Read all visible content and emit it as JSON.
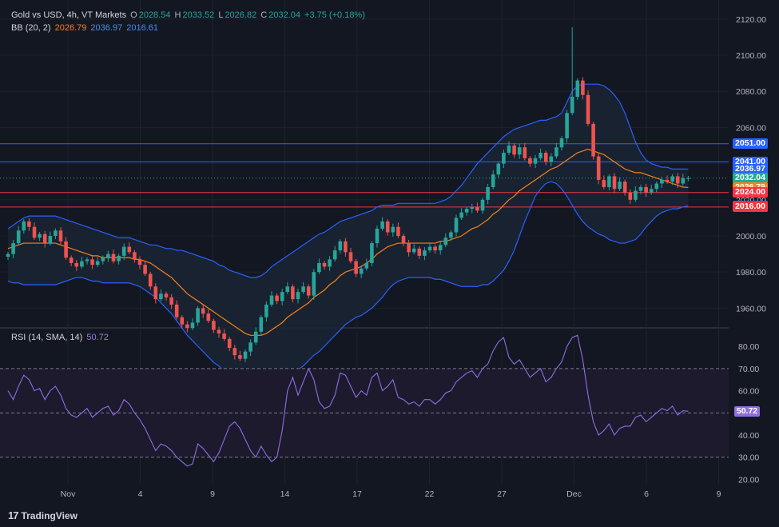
{
  "header": {
    "title": "Gold vs USD, 4h, VT Markets",
    "o_label": "O",
    "o": "2028.54",
    "h_label": "H",
    "h": "2033.52",
    "l_label": "L",
    "l": "2026.82",
    "c_label": "C",
    "c": "2032.04",
    "change": "+3.75 (+0.18%)",
    "bb_title": "BB (20, 2)",
    "bb_basis": "2026.79",
    "bb_upper": "2036.97",
    "bb_lower": "2016.61",
    "rsi_title": "RSI (14, SMA, 14)",
    "rsi_value": "50.72"
  },
  "branding": {
    "logo_mark": "17",
    "logo_text": "TradingView"
  },
  "colors": {
    "bg": "#131722",
    "grid": "#1e222d",
    "up": "#26a69a",
    "down": "#ef5350",
    "bb_basis": "#f7821b",
    "bb_band": "#2962ff",
    "bb_fill": "#1a2433",
    "rsi": "#7e57c2",
    "rsi_fill": "#1d1a2e",
    "blue_line": "#2962ff",
    "red_line": "#f23645"
  },
  "chart_data": [
    {
      "type": "candlestick",
      "title": "Gold vs USD, 4h, VT Markets",
      "ylim": [
        1950,
        2127
      ],
      "y_ticks": [
        "2120.00",
        "2100.00",
        "2080.00",
        "2060.00",
        "2040.00",
        "2020.00",
        "2000.00",
        "1980.00",
        "1960.00"
      ],
      "x_ticks": [
        "Nov",
        "4",
        "9",
        "14",
        "17",
        "22",
        "27",
        "Dec",
        "6",
        "9"
      ],
      "price_lines": [
        {
          "value": 2051.0,
          "label": "2051.00",
          "color": "#2962ff"
        },
        {
          "value": 2041.0,
          "label": "2041.00",
          "color": "#2962ff"
        },
        {
          "value": 2024.0,
          "label": "2024.00",
          "color": "#f23645"
        },
        {
          "value": 2016.0,
          "label": "2016.00",
          "color": "#f23645"
        }
      ],
      "price_labels": [
        {
          "value": 2051.0,
          "label": "2051.00",
          "color": "#2962ff"
        },
        {
          "value": 2041.0,
          "label": "2041.00",
          "color": "#2962ff"
        },
        {
          "value": 2036.97,
          "label": "2036.97",
          "color": "#2962ff"
        },
        {
          "value": 2032.04,
          "label": "2032.04",
          "color": "#22ab94"
        },
        {
          "value": 2026.79,
          "label": "2026.79",
          "color": "#f7821b"
        },
        {
          "value": 2024.0,
          "label": "2024.00",
          "color": "#f23645"
        },
        {
          "value": 2016.61,
          "label": "2016.61",
          "color": "#2962ff"
        },
        {
          "value": 2016.0,
          "label": "2016.00",
          "color": "#f23645"
        }
      ],
      "close": [
        1990,
        1996,
        2003,
        2008,
        2005,
        1999,
        2001,
        1996,
        2000,
        2003,
        1997,
        1988,
        1985,
        1983,
        1986,
        1987,
        1984,
        1986,
        1988,
        1990,
        1986,
        1989,
        1994,
        1991,
        1987,
        1984,
        1979,
        1972,
        1965,
        1968,
        1966,
        1962,
        1955,
        1951,
        1949,
        1952,
        1960,
        1957,
        1953,
        1948,
        1946,
        1943,
        1938,
        1934,
        1932,
        1936,
        1941,
        1947,
        1955,
        1962,
        1967,
        1964,
        1969,
        1972,
        1965,
        1969,
        1972,
        1967,
        1980,
        1985,
        1983,
        1987,
        1992,
        1997,
        1991,
        1986,
        1979,
        1982,
        1985,
        1996,
        2004,
        2008,
        2002,
        2005,
        2000,
        1996,
        1991,
        1993,
        1989,
        1992,
        1994,
        1992,
        1995,
        1999,
        2002,
        2010,
        2013,
        2015,
        2016,
        2014,
        2020,
        2027,
        2034,
        2040,
        2046,
        2050,
        2045,
        2049,
        2043,
        2040,
        2043,
        2046,
        2041,
        2044,
        2049,
        2054,
        2068,
        2077,
        2086,
        2078,
        2062,
        2044,
        2031,
        2027,
        2033,
        2026,
        2030,
        2024,
        2020,
        2025,
        2027,
        2024,
        2026,
        2029,
        2031,
        2030,
        2033,
        2029,
        2032,
        2032
      ],
      "bb_basis": [
        1993,
        1994,
        1995,
        1996,
        1996,
        1996,
        1996,
        1996,
        1996,
        1996,
        1995,
        1994,
        1993,
        1992,
        1991,
        1990,
        1989,
        1989,
        1988,
        1988,
        1988,
        1988,
        1988,
        1988,
        1987,
        1987,
        1986,
        1985,
        1983,
        1981,
        1979,
        1977,
        1974,
        1971,
        1968,
        1966,
        1964,
        1962,
        1960,
        1958,
        1956,
        1954,
        1952,
        1950,
        1948,
        1946,
        1945,
        1945,
        1945,
        1946,
        1948,
        1950,
        1952,
        1955,
        1957,
        1959,
        1961,
        1963,
        1966,
        1968,
        1970,
        1973,
        1975,
        1978,
        1980,
        1981,
        1982,
        1983,
        1985,
        1987,
        1990,
        1992,
        1994,
        1995,
        1996,
        1996,
        1996,
        1996,
        1996,
        1996,
        1996,
        1996,
        1997,
        1997,
        1998,
        1999,
        2000,
        2002,
        2004,
        2005,
        2007,
        2009,
        2012,
        2014,
        2017,
        2020,
        2022,
        2025,
        2027,
        2029,
        2031,
        2033,
        2035,
        2037,
        2038,
        2040,
        2042,
        2044,
        2046,
        2047,
        2048,
        2047,
        2046,
        2045,
        2043,
        2041,
        2039,
        2037,
        2036,
        2035,
        2035,
        2034,
        2033,
        2032,
        2031,
        2030,
        2029,
        2028,
        2027,
        2026.79
      ],
      "bb_upper": [
        2004,
        2006,
        2008,
        2010,
        2011,
        2011,
        2011,
        2011,
        2011,
        2011,
        2010,
        2009,
        2008,
        2007,
        2006,
        2005,
        2004,
        2003,
        2002,
        2001,
        2000,
        1999,
        1999,
        1999,
        1998,
        1997,
        1996,
        1995,
        1995,
        1994,
        1993,
        1993,
        1992,
        1992,
        1991,
        1990,
        1989,
        1988,
        1987,
        1986,
        1984,
        1983,
        1981,
        1980,
        1979,
        1978,
        1977,
        1977,
        1978,
        1980,
        1983,
        1985,
        1987,
        1989,
        1991,
        1993,
        1995,
        1997,
        1999,
        2001,
        2002,
        2004,
        2006,
        2008,
        2009,
        2010,
        2011,
        2012,
        2013,
        2014,
        2016,
        2017,
        2017,
        2017,
        2018,
        2018,
        2018,
        2018,
        2018,
        2018,
        2018,
        2018,
        2019,
        2020,
        2022,
        2025,
        2028,
        2032,
        2036,
        2040,
        2043,
        2046,
        2049,
        2052,
        2055,
        2057,
        2059,
        2060,
        2061,
        2062,
        2063,
        2064,
        2064,
        2065,
        2066,
        2068,
        2074,
        2080,
        2083,
        2084,
        2084,
        2084,
        2084,
        2083,
        2081,
        2078,
        2074,
        2068,
        2060,
        2052,
        2046,
        2042,
        2040,
        2039,
        2038,
        2038,
        2037,
        2037,
        2037,
        2036.97
      ],
      "bb_lower": [
        1975,
        1974,
        1974,
        1973,
        1973,
        1973,
        1973,
        1973,
        1973,
        1973,
        1974,
        1975,
        1976,
        1977,
        1977,
        1976,
        1975,
        1975,
        1974,
        1974,
        1974,
        1974,
        1974,
        1974,
        1973,
        1972,
        1970,
        1968,
        1966,
        1963,
        1960,
        1957,
        1953,
        1949,
        1945,
        1942,
        1939,
        1936,
        1933,
        1930,
        1928,
        1925,
        1923,
        1920,
        1918,
        1916,
        1915,
        1914,
        1914,
        1914,
        1915,
        1917,
        1919,
        1921,
        1924,
        1926,
        1928,
        1931,
        1934,
        1936,
        1939,
        1942,
        1945,
        1948,
        1951,
        1953,
        1955,
        1956,
        1958,
        1960,
        1963,
        1966,
        1970,
        1973,
        1975,
        1976,
        1977,
        1977,
        1977,
        1977,
        1977,
        1976,
        1976,
        1975,
        1974,
        1973,
        1972,
        1972,
        1972,
        1972,
        1973,
        1973,
        1975,
        1978,
        1981,
        1986,
        1992,
        2000,
        2008,
        2015,
        2022,
        2026,
        2029,
        2030,
        2029,
        2026,
        2022,
        2017,
        2012,
        2008,
        2005,
        2003,
        2001,
        2000,
        1998,
        1997,
        1996,
        1996,
        1997,
        1998,
        2001,
        2005,
        2008,
        2011,
        2013,
        2014,
        2015,
        2015,
        2016,
        2016.61
      ]
    },
    {
      "type": "line",
      "title": "RSI (14, SMA, 14)",
      "ylim": [
        18,
        88
      ],
      "y_ticks": [
        "80.00",
        "70.00",
        "60.00",
        "50.00",
        "40.00",
        "30.00",
        "20.00"
      ],
      "bands": {
        "upper": 70,
        "middle": 50,
        "lower": 30
      },
      "series": [
        {
          "name": "RSI",
          "values": [
            60,
            56,
            62,
            67,
            65,
            60,
            61,
            56,
            60,
            62,
            58,
            52,
            49,
            48,
            50,
            52,
            48,
            50,
            52,
            53,
            49,
            51,
            56,
            54,
            50,
            47,
            43,
            38,
            33,
            36,
            35,
            33,
            30,
            28,
            26,
            27,
            36,
            34,
            31,
            28,
            32,
            38,
            44,
            46,
            43,
            38,
            33,
            30,
            35,
            31,
            28,
            30,
            42,
            60,
            66,
            58,
            64,
            70,
            65,
            55,
            52,
            53,
            58,
            68,
            67,
            62,
            57,
            60,
            58,
            66,
            68,
            60,
            62,
            65,
            57,
            56,
            54,
            55,
            53,
            56,
            56,
            54,
            56,
            59,
            60,
            64,
            66,
            68,
            69,
            66,
            70,
            72,
            78,
            82,
            84,
            75,
            72,
            74,
            70,
            66,
            68,
            70,
            64,
            66,
            70,
            73,
            80,
            84,
            85,
            74,
            58,
            46,
            40,
            42,
            45,
            40,
            43,
            44,
            44,
            48,
            49,
            46,
            48,
            50,
            52,
            51,
            53,
            49,
            51,
            50.72
          ]
        },
        {
          "name": "RSI-based MA",
          "values": [
            58,
            58,
            59,
            59,
            59,
            59,
            59,
            59,
            59,
            59,
            58,
            58,
            57,
            56,
            55,
            55,
            54,
            54,
            53,
            53,
            52,
            52,
            52,
            52,
            51,
            51,
            50,
            49,
            48,
            47,
            46,
            45,
            44,
            43,
            41,
            40,
            39,
            38,
            37,
            36,
            35,
            35,
            35,
            35,
            35,
            35,
            34,
            34,
            34,
            34,
            34,
            34,
            35,
            37,
            39,
            41,
            43,
            45,
            47,
            48,
            49,
            50,
            51,
            52,
            54,
            55,
            56,
            57,
            58,
            59,
            60,
            60,
            60,
            60,
            60,
            60,
            60,
            59,
            59,
            59,
            59,
            59,
            59,
            59,
            59,
            60,
            60,
            61,
            62,
            63,
            64,
            65,
            67,
            68,
            70,
            70,
            71,
            71,
            72,
            72,
            72,
            72,
            72,
            72,
            72,
            72,
            73,
            74,
            75,
            75,
            74,
            72,
            70,
            68,
            66,
            63,
            60,
            57,
            54,
            51,
            49,
            47,
            46,
            45,
            45,
            45,
            46,
            46,
            47,
            48
          ]
        }
      ]
    }
  ]
}
